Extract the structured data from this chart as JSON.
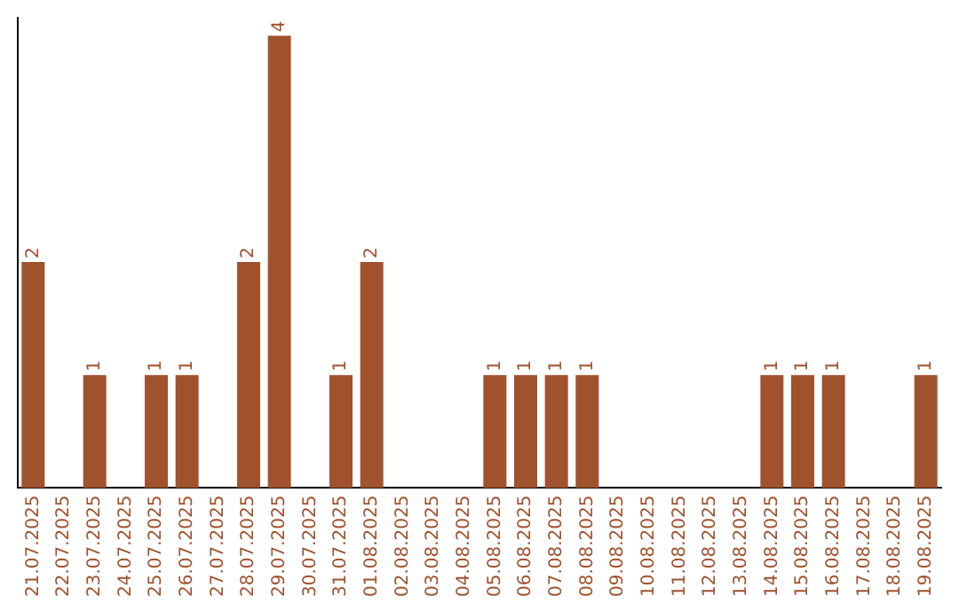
{
  "chart_data": {
    "type": "bar",
    "categories": [
      "21.07.2025",
      "22.07.2025",
      "23.07.2025",
      "24.07.2025",
      "25.07.2025",
      "26.07.2025",
      "27.07.2025",
      "28.07.2025",
      "29.07.2025",
      "30.07.2025",
      "31.07.2025",
      "01.08.2025",
      "02.08.2025",
      "03.08.2025",
      "04.08.2025",
      "05.08.2025",
      "06.08.2025",
      "07.08.2025",
      "08.08.2025",
      "09.08.2025",
      "10.08.2025",
      "11.08.2025",
      "12.08.2025",
      "13.08.2025",
      "14.08.2025",
      "15.08.2025",
      "16.08.2025",
      "17.08.2025",
      "18.08.2025",
      "19.08.2025"
    ],
    "values": [
      2,
      0,
      1,
      0,
      1,
      1,
      0,
      2,
      4,
      0,
      1,
      2,
      0,
      0,
      0,
      1,
      1,
      1,
      1,
      0,
      0,
      0,
      0,
      0,
      1,
      1,
      1,
      0,
      0,
      1
    ],
    "value_labels": [
      "2",
      null,
      "1",
      null,
      "1",
      "1",
      null,
      "2",
      "4",
      null,
      "1",
      "2",
      null,
      null,
      null,
      "1",
      "1",
      "1",
      "1",
      null,
      null,
      null,
      null,
      null,
      "1",
      "1",
      "1",
      null,
      null,
      "1"
    ],
    "color": "#a0522d",
    "ylim": [
      0,
      4.16
    ],
    "tick_labels": "x",
    "grid": false,
    "legend": false
  }
}
